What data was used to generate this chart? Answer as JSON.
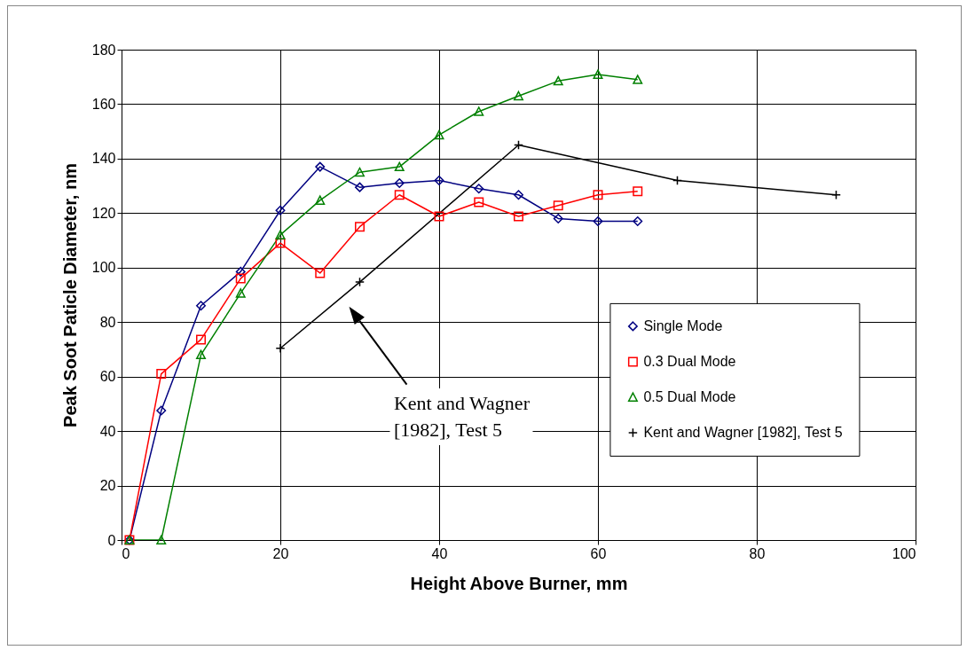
{
  "chart_data": {
    "type": "line",
    "xlabel": "Height Above Burner, mm",
    "ylabel": "Peak Soot Paticle Diameter, nm",
    "xlim": [
      0,
      100
    ],
    "xticks": [
      0,
      20,
      40,
      60,
      80,
      100
    ],
    "ylim": [
      0,
      180
    ],
    "yticks": [
      0,
      20,
      40,
      60,
      80,
      100,
      120,
      140,
      160,
      180
    ],
    "grid": true,
    "legend": "bottom right",
    "series": [
      {
        "name": "Single Mode",
        "color": "#000080",
        "marker": "diamond",
        "x": [
          1,
          5,
          10,
          15,
          20,
          25,
          30,
          35,
          40,
          45,
          50,
          55,
          60,
          65
        ],
        "values": [
          0,
          47.5,
          86,
          98.5,
          121,
          137,
          129.5,
          131,
          132,
          129,
          126.7,
          118,
          117,
          117
        ]
      },
      {
        "name": "0.3 Dual Mode",
        "color": "#ff0000",
        "marker": "square",
        "x": [
          1,
          5,
          10,
          15,
          20,
          25,
          30,
          35,
          40,
          45,
          50,
          55,
          60,
          65
        ],
        "values": [
          0,
          61,
          73.6,
          96,
          109,
          98,
          115,
          126.7,
          118.8,
          124,
          118.8,
          122.8,
          126.7,
          128
        ]
      },
      {
        "name": "0.5 Dual Mode",
        "color": "#008000",
        "marker": "triangle",
        "x": [
          1,
          5,
          10,
          15,
          20,
          25,
          30,
          35,
          40,
          45,
          50,
          55,
          60,
          65
        ],
        "values": [
          0,
          0,
          68,
          90.6,
          112,
          124.7,
          135,
          137,
          148.7,
          157.3,
          163,
          168.5,
          170.9,
          169
        ]
      },
      {
        "name": "Kent and Wagner [1982], Test 5",
        "color": "#000000",
        "marker": "cross",
        "x": [
          20,
          30,
          50,
          70,
          90
        ],
        "values": [
          70.4,
          94.7,
          145,
          132,
          126.7
        ]
      }
    ],
    "annotations": [
      "Kent and Wagner\n[1982], Test 5"
    ]
  }
}
